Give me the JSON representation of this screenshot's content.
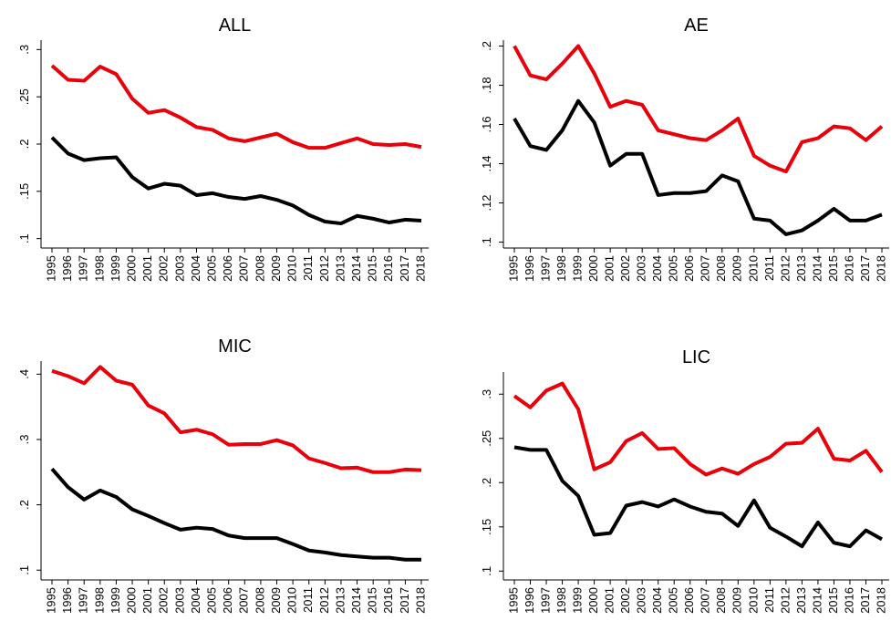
{
  "chart_data": [
    {
      "type": "line",
      "title": "ALL",
      "categories": [
        "1995",
        "1996",
        "1997",
        "1998",
        "1999",
        "2000",
        "2001",
        "2002",
        "2003",
        "2004",
        "2005",
        "2006",
        "2007",
        "2008",
        "2009",
        "2010",
        "2011",
        "2012",
        "2013",
        "2014",
        "2015",
        "2016",
        "2017",
        "2018"
      ],
      "series": [
        {
          "color": "#e8000b",
          "values": [
            0.283,
            0.268,
            0.267,
            0.282,
            0.274,
            0.248,
            0.233,
            0.236,
            0.228,
            0.218,
            0.215,
            0.206,
            0.203,
            0.207,
            0.211,
            0.202,
            0.196,
            0.196,
            0.201,
            0.206,
            0.2,
            0.199,
            0.2,
            0.197
          ]
        },
        {
          "color": "#000000",
          "values": [
            0.207,
            0.19,
            0.183,
            0.185,
            0.186,
            0.165,
            0.153,
            0.158,
            0.156,
            0.146,
            0.148,
            0.144,
            0.142,
            0.145,
            0.141,
            0.135,
            0.125,
            0.118,
            0.116,
            0.124,
            0.121,
            0.117,
            0.12,
            0.119
          ]
        }
      ],
      "ylim": [
        0.09,
        0.31
      ],
      "yticks": [
        {
          "value": 0.1,
          "label": ".1"
        },
        {
          "value": 0.15,
          "label": ".15"
        },
        {
          "value": 0.2,
          "label": ".2"
        },
        {
          "value": 0.25,
          "label": ".25"
        },
        {
          "value": 0.3,
          "label": ".3"
        }
      ]
    },
    {
      "type": "line",
      "title": "AE",
      "categories": [
        "1995",
        "1996",
        "1997",
        "1998",
        "1999",
        "2000",
        "2001",
        "2002",
        "2003",
        "2004",
        "2005",
        "2006",
        "2007",
        "2008",
        "2009",
        "2010",
        "2011",
        "2012",
        "2013",
        "2014",
        "2015",
        "2016",
        "2017",
        "2018"
      ],
      "series": [
        {
          "color": "#e8000b",
          "values": [
            0.2,
            0.185,
            0.183,
            0.191,
            0.2,
            0.186,
            0.169,
            0.172,
            0.17,
            0.157,
            0.155,
            0.153,
            0.152,
            0.157,
            0.163,
            0.144,
            0.139,
            0.136,
            0.151,
            0.153,
            0.159,
            0.158,
            0.152,
            0.159
          ]
        },
        {
          "color": "#000000",
          "values": [
            0.163,
            0.149,
            0.147,
            0.157,
            0.172,
            0.161,
            0.139,
            0.145,
            0.145,
            0.124,
            0.125,
            0.125,
            0.126,
            0.134,
            0.131,
            0.112,
            0.111,
            0.104,
            0.106,
            0.111,
            0.117,
            0.111,
            0.111,
            0.114
          ]
        }
      ],
      "ylim": [
        0.097,
        0.203
      ],
      "yticks": [
        {
          "value": 0.1,
          "label": ".1"
        },
        {
          "value": 0.12,
          "label": ".12"
        },
        {
          "value": 0.14,
          "label": ".14"
        },
        {
          "value": 0.16,
          "label": ".16"
        },
        {
          "value": 0.18,
          "label": ".18"
        },
        {
          "value": 0.2,
          "label": ".2"
        }
      ]
    },
    {
      "type": "line",
      "title": "MIC",
      "categories": [
        "1995",
        "1996",
        "1997",
        "1998",
        "1999",
        "2000",
        "2001",
        "2002",
        "2003",
        "2004",
        "2005",
        "2006",
        "2007",
        "2008",
        "2009",
        "2010",
        "2011",
        "2012",
        "2013",
        "2014",
        "2015",
        "2016",
        "2017",
        "2018"
      ],
      "series": [
        {
          "color": "#e8000b",
          "values": [
            0.405,
            0.397,
            0.386,
            0.411,
            0.39,
            0.384,
            0.352,
            0.34,
            0.311,
            0.315,
            0.308,
            0.292,
            0.293,
            0.293,
            0.299,
            0.291,
            0.271,
            0.264,
            0.256,
            0.257,
            0.25,
            0.25,
            0.254,
            0.253
          ]
        },
        {
          "color": "#000000",
          "values": [
            0.255,
            0.227,
            0.208,
            0.222,
            0.212,
            0.193,
            0.183,
            0.172,
            0.162,
            0.165,
            0.163,
            0.153,
            0.149,
            0.149,
            0.149,
            0.14,
            0.13,
            0.127,
            0.123,
            0.121,
            0.119,
            0.119,
            0.116,
            0.116
          ]
        }
      ],
      "ylim": [
        0.085,
        0.42
      ],
      "yticks": [
        {
          "value": 0.1,
          "label": ".1"
        },
        {
          "value": 0.2,
          "label": ".2"
        },
        {
          "value": 0.3,
          "label": ".3"
        },
        {
          "value": 0.4,
          "label": ".4"
        }
      ]
    },
    {
      "type": "line",
      "title": "LIC",
      "categories": [
        "1995",
        "1996",
        "1997",
        "1998",
        "1999",
        "2000",
        "2001",
        "2002",
        "2003",
        "2004",
        "2005",
        "2006",
        "2007",
        "2008",
        "2009",
        "2010",
        "2011",
        "2012",
        "2013",
        "2014",
        "2015",
        "2016",
        "2017",
        "2018"
      ],
      "series": [
        {
          "color": "#e8000b",
          "values": [
            0.298,
            0.285,
            0.304,
            0.312,
            0.283,
            0.215,
            0.223,
            0.247,
            0.256,
            0.238,
            0.239,
            0.221,
            0.209,
            0.216,
            0.21,
            0.221,
            0.229,
            0.244,
            0.245,
            0.261,
            0.227,
            0.225,
            0.236,
            0.212
          ]
        },
        {
          "color": "#000000",
          "values": [
            0.24,
            0.237,
            0.237,
            0.202,
            0.185,
            0.141,
            0.143,
            0.174,
            0.178,
            0.173,
            0.181,
            0.173,
            0.167,
            0.165,
            0.151,
            0.18,
            0.149,
            0.139,
            0.128,
            0.155,
            0.132,
            0.128,
            0.146,
            0.136
          ]
        }
      ],
      "ylim": [
        0.09,
        0.325
      ],
      "yticks": [
        {
          "value": 0.1,
          "label": ".1"
        },
        {
          "value": 0.15,
          "label": ".15"
        },
        {
          "value": 0.2,
          "label": ".2"
        },
        {
          "value": 0.25,
          "label": ".25"
        },
        {
          "value": 0.3,
          "label": ".3"
        }
      ]
    }
  ]
}
